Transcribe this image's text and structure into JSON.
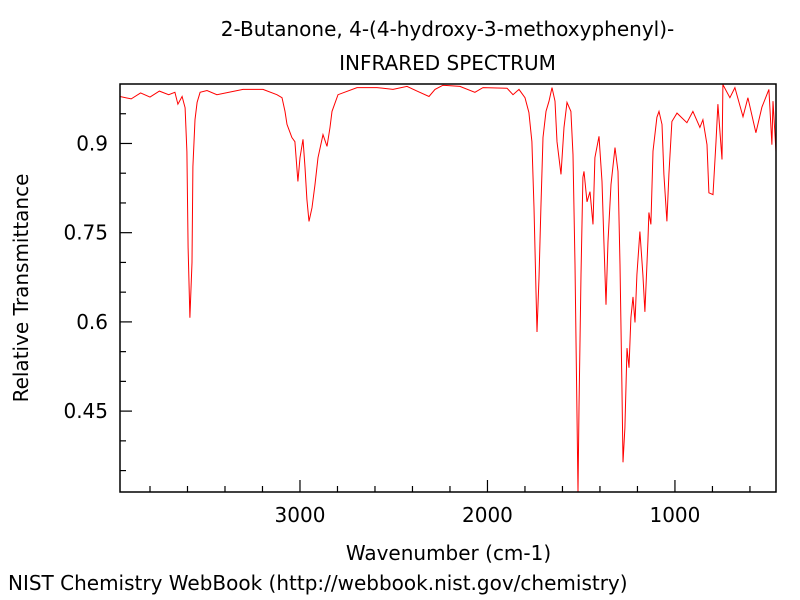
{
  "chart_data": {
    "type": "line",
    "title": "2-Butanone, 4-(4-hydroxy-3-methoxyphenyl)-",
    "subtitle": "INFRARED SPECTRUM",
    "xlabel": "Wavenumber (cm-1)",
    "ylabel": "Relative Transmittance",
    "xlim": [
      3960,
      461
    ],
    "ylim": [
      0.314,
      1.0
    ],
    "x_reversed": true,
    "x_ticks": [
      3000,
      2000,
      1000
    ],
    "x_tick_labels": [
      "3000",
      "2000",
      "1000"
    ],
    "y_ticks": [
      0.9,
      0.75,
      0.6,
      0.45
    ],
    "y_tick_labels": [
      "0.9",
      "0.75",
      "0.6",
      "0.45"
    ],
    "grid": false,
    "line_color": "#ff0000",
    "series": [
      {
        "x": [
          3960,
          3900,
          3850,
          3800,
          3750,
          3700,
          3667,
          3651,
          3629,
          3613,
          3603,
          3597,
          3587,
          3576,
          3571,
          3560,
          3549,
          3533,
          3496,
          3443,
          3304,
          3197,
          3123,
          3096,
          3080,
          3069,
          3043,
          3027,
          3011,
          3000,
          2984,
          2973,
          2963,
          2952,
          2936,
          2920,
          2904,
          2877,
          2856,
          2840,
          2829,
          2797,
          2696,
          2589,
          2504,
          2429,
          2376,
          2312,
          2280,
          2237,
          2147,
          2067,
          2024,
          1896,
          1864,
          1832,
          1800,
          1779,
          1763,
          1752,
          1741,
          1736,
          1725,
          1715,
          1704,
          1688,
          1672,
          1656,
          1640,
          1629,
          1608,
          1592,
          1576,
          1555,
          1544,
          1533,
          1523,
          1517,
          1512,
          1501,
          1491,
          1485,
          1469,
          1453,
          1437,
          1427,
          1405,
          1389,
          1379,
          1368,
          1357,
          1341,
          1320,
          1304,
          1293,
          1283,
          1277,
          1267,
          1256,
          1245,
          1235,
          1224,
          1213,
          1203,
          1187,
          1171,
          1160,
          1144,
          1139,
          1128,
          1117,
          1096,
          1085,
          1069,
          1059,
          1043,
          1032,
          1016,
          989,
          936,
          904,
          867,
          851,
          829,
          819,
          797,
          781,
          771,
          749,
          744,
          707,
          680,
          637,
          611,
          568,
          536,
          499,
          483,
          477,
          461
        ],
        "y": [
          0.979,
          0.975,
          0.985,
          0.978,
          0.988,
          0.982,
          0.986,
          0.966,
          0.979,
          0.96,
          0.886,
          0.725,
          0.607,
          0.7,
          0.861,
          0.94,
          0.969,
          0.986,
          0.989,
          0.982,
          0.991,
          0.991,
          0.982,
          0.977,
          0.954,
          0.932,
          0.91,
          0.903,
          0.836,
          0.876,
          0.907,
          0.86,
          0.806,
          0.769,
          0.792,
          0.831,
          0.876,
          0.915,
          0.895,
          0.927,
          0.954,
          0.982,
          0.994,
          0.994,
          0.991,
          0.996,
          0.988,
          0.979,
          0.991,
          0.998,
          0.996,
          0.986,
          0.994,
          0.993,
          0.982,
          0.991,
          0.977,
          0.952,
          0.903,
          0.792,
          0.651,
          0.583,
          0.674,
          0.792,
          0.91,
          0.954,
          0.971,
          0.994,
          0.971,
          0.903,
          0.848,
          0.927,
          0.969,
          0.954,
          0.881,
          0.696,
          0.455,
          0.314,
          0.455,
          0.679,
          0.843,
          0.853,
          0.802,
          0.819,
          0.764,
          0.876,
          0.912,
          0.836,
          0.735,
          0.629,
          0.735,
          0.831,
          0.893,
          0.853,
          0.696,
          0.494,
          0.364,
          0.422,
          0.556,
          0.523,
          0.607,
          0.642,
          0.599,
          0.679,
          0.752,
          0.679,
          0.617,
          0.735,
          0.784,
          0.764,
          0.887,
          0.944,
          0.954,
          0.932,
          0.848,
          0.769,
          0.848,
          0.937,
          0.951,
          0.935,
          0.954,
          0.927,
          0.94,
          0.898,
          0.817,
          0.814,
          0.903,
          0.966,
          0.873,
          0.999,
          0.977,
          0.994,
          0.945,
          0.977,
          0.918,
          0.961,
          0.991,
          0.898,
          0.971,
          0.886
        ]
      }
    ]
  },
  "footer": "NIST Chemistry WebBook (http://webbook.nist.gov/chemistry)"
}
